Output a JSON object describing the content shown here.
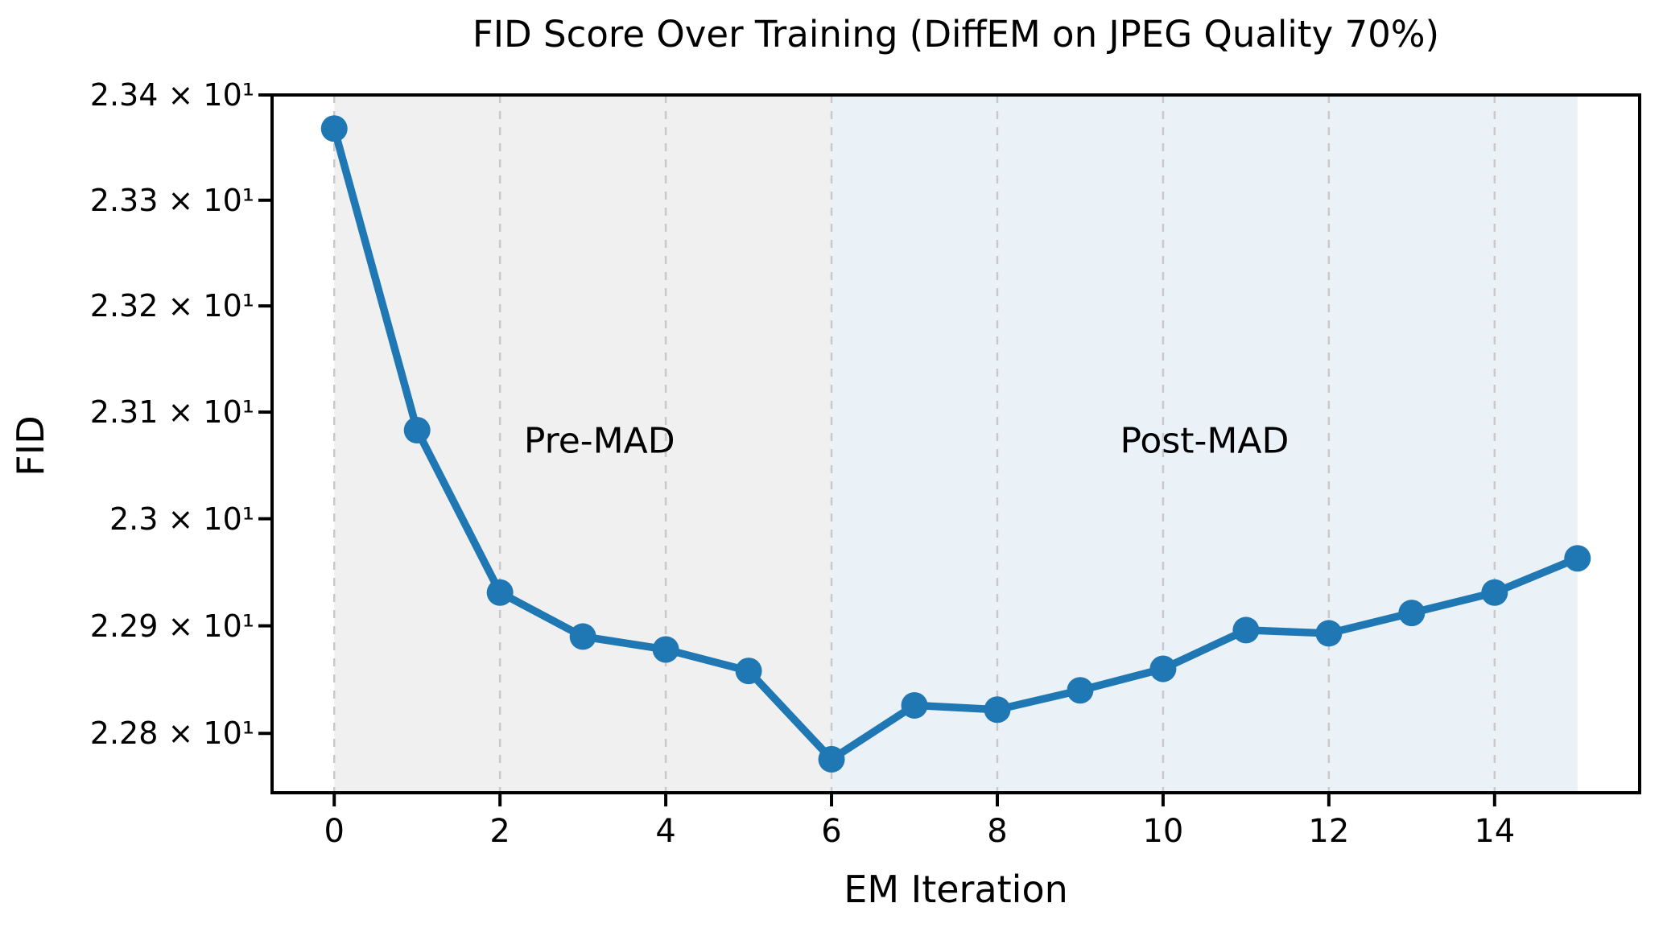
{
  "chart_data": {
    "type": "line",
    "title": "FID Score Over Training (DiffEM on JPEG Quality 70%)",
    "xlabel": "EM Iteration",
    "ylabel": "FID",
    "yscale": "log",
    "xlim": [
      -0.75,
      15.75
    ],
    "ylim": [
      22.745,
      23.4
    ],
    "x": [
      0,
      1,
      2,
      3,
      4,
      5,
      6,
      7,
      8,
      9,
      10,
      11,
      12,
      13,
      14,
      15
    ],
    "series": [
      {
        "name": "FID",
        "values": [
          23.368,
          23.083,
          22.931,
          22.89,
          22.878,
          22.858,
          22.776,
          22.826,
          22.822,
          22.84,
          22.86,
          22.896,
          22.893,
          22.912,
          22.931,
          22.963
        ]
      }
    ],
    "xticks": [
      {
        "value": 0,
        "label": "0"
      },
      {
        "value": 2,
        "label": "2"
      },
      {
        "value": 4,
        "label": "4"
      },
      {
        "value": 6,
        "label": "6"
      },
      {
        "value": 8,
        "label": "8"
      },
      {
        "value": 10,
        "label": "10"
      },
      {
        "value": 12,
        "label": "12"
      },
      {
        "value": 14,
        "label": "14"
      }
    ],
    "yticks": [
      {
        "value": 23.4,
        "label": "2.34 × 10¹"
      },
      {
        "value": 23.3,
        "label": "2.33 × 10¹"
      },
      {
        "value": 23.2,
        "label": "2.32 × 10¹"
      },
      {
        "value": 23.1,
        "label": "2.31 × 10¹"
      },
      {
        "value": 23.0,
        "label": "2.3 × 10¹"
      },
      {
        "value": 22.9,
        "label": "2.29 × 10¹"
      },
      {
        "value": 22.8,
        "label": "2.28 × 10¹"
      }
    ],
    "regions": [
      {
        "label": "Pre-MAD",
        "x0": 0,
        "x1": 6,
        "fill": "#f0f0f0"
      },
      {
        "label": "Post-MAD",
        "x0": 6,
        "x1": 15,
        "fill": "#eaf2f8"
      }
    ],
    "annotations": [
      {
        "text": "Pre-MAD",
        "x": 3.2,
        "y": 23.073
      },
      {
        "text": "Post-MAD",
        "x": 10.5,
        "y": 23.073
      }
    ],
    "grid": {
      "axis": "x",
      "style": "dashed",
      "color": "#c9c9c9"
    },
    "legend": "none",
    "colors": {
      "line": "#1f77b4",
      "marker": "#1f77b4",
      "spine": "#000000",
      "background": "#ffffff"
    }
  }
}
